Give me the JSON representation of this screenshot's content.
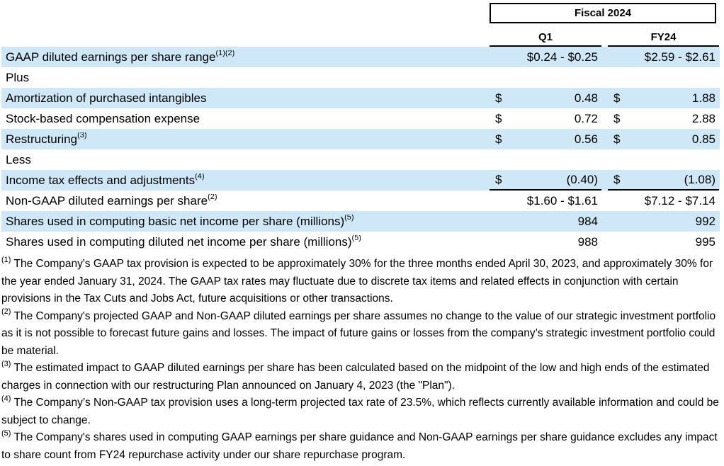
{
  "colors": {
    "row_shade": "#cee8f7",
    "border": "#000000",
    "text": "#000000"
  },
  "table": {
    "group_header": "Fiscal 2024",
    "columns": [
      "Q1",
      "FY24"
    ],
    "rows": [
      {
        "label": "GAAP diluted earnings per share range",
        "sup": "(1)(2)",
        "q1": "$0.24 - $0.25",
        "fy24": "$2.59 - $2.61"
      },
      {
        "label": "Plus"
      },
      {
        "label": "Amortization of purchased intangibles",
        "q1_sym": "$",
        "q1": "0.48",
        "fy24_sym": "$",
        "fy24": "1.88"
      },
      {
        "label": "Stock-based compensation expense",
        "q1_sym": "$",
        "q1": "0.72",
        "fy24_sym": "$",
        "fy24": "2.88"
      },
      {
        "label": "Restructuring",
        "sup": "(3)",
        "q1_sym": "$",
        "q1": "0.56",
        "fy24_sym": "$",
        "fy24": "0.85"
      },
      {
        "label": "Less"
      },
      {
        "label": "Income tax effects and adjustments",
        "sup": "(4)",
        "q1_sym": "$",
        "q1": "(0.40)",
        "fy24_sym": "$",
        "fy24": "(1.08)"
      },
      {
        "label": "Non-GAAP diluted earnings per share",
        "sup": "(2)",
        "q1": "$1.60 - $1.61",
        "fy24": "$7.12 - $7.14"
      },
      {
        "label": "Shares used in computing basic net income per share (millions)",
        "sup": "(5)",
        "q1": "984",
        "fy24": "992"
      },
      {
        "label": "Shares used in computing diluted net income per share (millions)",
        "sup": "(5)",
        "q1": "988",
        "fy24": "995"
      }
    ]
  },
  "footnotes": [
    {
      "marker": "(1)",
      "text": "The Company's GAAP tax provision is expected to be approximately 30% for the three months ended April 30, 2023, and approximately 30% for the year ended January 31, 2024. The GAAP tax rates may fluctuate due to discrete tax items and related effects in conjunction with certain provisions in the Tax Cuts and Jobs Act, future acquisitions or other transactions."
    },
    {
      "marker": "(2)",
      "text": "The Company's projected GAAP and Non-GAAP diluted earnings per share assumes no change to the value of our strategic investment portfolio as it is not possible to forecast future gains and losses. The impact of future gains or losses from the company’s strategic investment portfolio could be material."
    },
    {
      "marker": "(3)",
      "text": "The estimated impact to GAAP diluted earnings per share has been calculated based on the midpoint of the low and high ends of the estimated charges in connection with our restructuring Plan announced on January 4, 2023 (the \"Plan\")."
    },
    {
      "marker": "(4)",
      "text": "The Company’s Non-GAAP tax provision uses a long-term projected tax rate of 23.5%, which reflects currently available information and could be subject to change."
    },
    {
      "marker": "(5)",
      "text": "The Company's shares used in computing GAAP earnings per share guidance and Non-GAAP earnings per share guidance excludes any impact to share count from FY24 repurchase activity under our share repurchase program."
    }
  ]
}
